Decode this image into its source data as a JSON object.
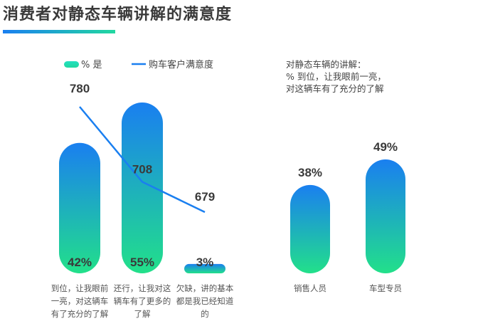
{
  "title": "消费者对静态车辆讲解的满意度",
  "legend": {
    "bar_label": "% 是",
    "line_label": "购车客户满意度"
  },
  "colors": {
    "bar_top": "#1a7ff0",
    "bar_bottom": "#22e08a",
    "line": "#1a7ff0",
    "accent": "#22d8a0"
  },
  "chart_data": [
    {
      "type": "bar",
      "categories": [
        [
          "到位，让我眼前",
          "一亮，对这辆车",
          "有了充分的了解"
        ],
        [
          "还行，让我对这",
          "辆车有了更多的",
          "了解"
        ],
        [
          "欠缺，讲的基本",
          "都是我已经知道",
          "的"
        ]
      ],
      "series": [
        {
          "name": "% 是",
          "values": [
            42,
            55,
            3
          ],
          "labels": [
            "42%",
            "55%",
            "3%"
          ]
        },
        {
          "name": "购车客户满意度",
          "type": "line",
          "values": [
            780,
            708,
            679
          ],
          "labels": [
            "780",
            "708",
            "679"
          ]
        }
      ]
    },
    {
      "type": "bar",
      "title_lines": [
        "对静态车辆的讲解：",
        "%  到位，让我眼前一亮，",
        "对这辆车有了充分的了解"
      ],
      "categories": [
        "销售人员",
        "车型专员"
      ],
      "values": [
        38,
        49
      ],
      "labels": [
        "38%",
        "49%"
      ]
    }
  ]
}
